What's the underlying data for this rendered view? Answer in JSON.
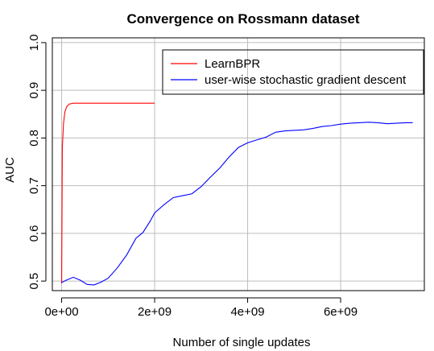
{
  "chart_data": {
    "type": "line",
    "title": "Convergence on Rossmann dataset",
    "xlabel": "Number of single updates",
    "ylabel": "AUC",
    "xlim": [
      -200000000,
      7800000000
    ],
    "ylim": [
      0.48,
      1.01
    ],
    "x_ticks": [
      0,
      2000000000,
      4000000000,
      6000000000
    ],
    "x_tick_labels": [
      "0e+00",
      "2e+09",
      "4e+09",
      "6e+09"
    ],
    "y_ticks": [
      0.5,
      0.6,
      0.7,
      0.8,
      0.9,
      1.0
    ],
    "y_tick_labels": [
      "0.5",
      "0.6",
      "0.7",
      "0.8",
      "0.9",
      "1.0"
    ],
    "grid": true,
    "legend_position": "top-right",
    "series": [
      {
        "name": "LearnBPR",
        "color": "#ff0000",
        "x": [
          0,
          15000000,
          40000000,
          70000000,
          110000000,
          160000000,
          250000000,
          400000000,
          600000000,
          800000000,
          1000000000,
          1200000000,
          1400000000,
          1600000000,
          1800000000,
          2000000000
        ],
        "y": [
          0.495,
          0.78,
          0.83,
          0.855,
          0.866,
          0.871,
          0.873,
          0.873,
          0.873,
          0.873,
          0.873,
          0.873,
          0.873,
          0.873,
          0.873,
          0.873
        ]
      },
      {
        "name": "user-wise stochastic gradient descent",
        "color": "#0000ff",
        "x": [
          0,
          100000000,
          250000000,
          400000000,
          550000000,
          700000000,
          850000000,
          1000000000,
          1200000000,
          1400000000,
          1600000000,
          1750000000,
          1900000000,
          2000000000,
          2200000000,
          2400000000,
          2600000000,
          2800000000,
          3000000000,
          3200000000,
          3400000000,
          3600000000,
          3800000000,
          4000000000,
          4200000000,
          4400000000,
          4600000000,
          4800000000,
          5000000000,
          5200000000,
          5400000000,
          5600000000,
          5800000000,
          6000000000,
          6200000000,
          6400000000,
          6600000000,
          6800000000,
          7000000000,
          7200000000,
          7400000000,
          7550000000
        ],
        "y": [
          0.497,
          0.502,
          0.508,
          0.502,
          0.493,
          0.492,
          0.498,
          0.506,
          0.528,
          0.555,
          0.59,
          0.602,
          0.625,
          0.643,
          0.66,
          0.675,
          0.679,
          0.683,
          0.698,
          0.718,
          0.737,
          0.76,
          0.78,
          0.79,
          0.796,
          0.802,
          0.812,
          0.815,
          0.816,
          0.817,
          0.82,
          0.824,
          0.826,
          0.829,
          0.831,
          0.832,
          0.833,
          0.832,
          0.83,
          0.831,
          0.832,
          0.832
        ]
      }
    ]
  }
}
